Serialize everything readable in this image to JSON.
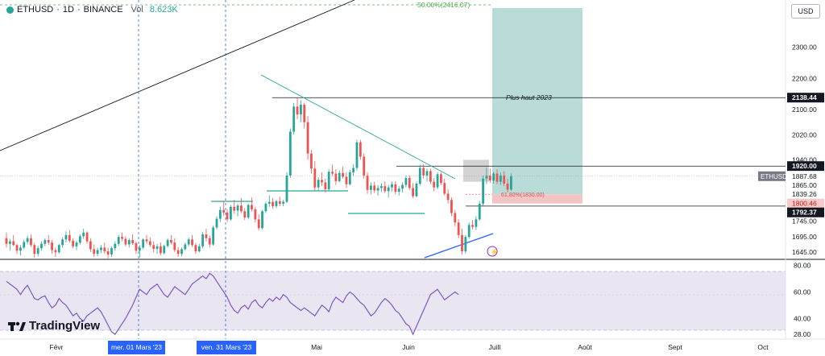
{
  "header": {
    "symbol": "ETHUSD",
    "interval": "1D",
    "exchange": "BINANCE",
    "volume_label": "Vol",
    "volume_value": "8.623K"
  },
  "currency": "USD",
  "brand": "TradingView",
  "chart_data": {
    "type": "candlestick",
    "price_axis": {
      "ticks": [
        "2300.00",
        "2200.00",
        "2100.00",
        "2020.00",
        "1940.00",
        "1865.00",
        "1745.00",
        "1695.00",
        "1645.00"
      ],
      "range": [
        1625,
        2450
      ]
    },
    "time_axis": {
      "labels": [
        "Févr",
        "Mai",
        "Juin",
        "Juill",
        "Août",
        "Sept",
        "Oct"
      ],
      "highlighted": [
        "mer. 01 Mars '23",
        "ven. 31 Mars '23"
      ]
    },
    "price_badges": [
      {
        "label": "2138.44",
        "value": 2138.44,
        "style": "dark"
      },
      {
        "label": "1920.00",
        "value": 1920.0,
        "style": "dark"
      },
      {
        "label": "ETHUSD",
        "value": 1887.68,
        "style": "gray"
      },
      {
        "label": "1887.68",
        "value": 1887.68,
        "style": "light"
      },
      {
        "label": "1865.00",
        "value": 1865.0,
        "style": "light"
      },
      {
        "label": "1839.26",
        "value": 1839.26,
        "style": "light"
      },
      {
        "label": "1800.46",
        "value": 1800.46,
        "style": "red"
      },
      {
        "label": "1792.37",
        "value": 1792.37,
        "style": "dark"
      }
    ],
    "annotations": [
      {
        "text": "50.00%(2416.07)",
        "value": 2416.07
      },
      {
        "text": "Plus haut 2023",
        "value": 2138.44
      },
      {
        "text": "61.80%(1830.00)",
        "value": 1830.0
      }
    ],
    "levels": [
      2138.44,
      1920.0,
      1792.37
    ],
    "ohlc": [
      [
        1690,
        1708,
        1660,
        1672
      ],
      [
        1672,
        1688,
        1650,
        1680
      ],
      [
        1680,
        1700,
        1665,
        1668
      ],
      [
        1668,
        1672,
        1640,
        1650
      ],
      [
        1650,
        1668,
        1635,
        1660
      ],
      [
        1660,
        1685,
        1655,
        1678
      ],
      [
        1678,
        1698,
        1670,
        1690
      ],
      [
        1690,
        1702,
        1662,
        1668
      ],
      [
        1668,
        1675,
        1628,
        1640
      ],
      [
        1640,
        1665,
        1632,
        1658
      ],
      [
        1658,
        1680,
        1650,
        1672
      ],
      [
        1672,
        1690,
        1664,
        1684
      ],
      [
        1684,
        1700,
        1668,
        1676
      ],
      [
        1676,
        1684,
        1640,
        1652
      ],
      [
        1652,
        1660,
        1630,
        1645
      ],
      [
        1645,
        1672,
        1640,
        1668
      ],
      [
        1668,
        1692,
        1660,
        1686
      ],
      [
        1686,
        1712,
        1676,
        1700
      ],
      [
        1700,
        1716,
        1676,
        1682
      ],
      [
        1682,
        1690,
        1658,
        1664
      ],
      [
        1664,
        1682,
        1652,
        1676
      ],
      [
        1676,
        1702,
        1670,
        1696
      ],
      [
        1696,
        1720,
        1688,
        1708
      ],
      [
        1708,
        1712,
        1672,
        1680
      ],
      [
        1680,
        1690,
        1646,
        1655
      ],
      [
        1655,
        1670,
        1630,
        1640
      ],
      [
        1640,
        1660,
        1632,
        1652
      ],
      [
        1652,
        1668,
        1642,
        1660
      ],
      [
        1660,
        1676,
        1640,
        1648
      ],
      [
        1648,
        1660,
        1626,
        1638
      ],
      [
        1638,
        1664,
        1630,
        1658
      ],
      [
        1658,
        1680,
        1650,
        1672
      ],
      [
        1672,
        1700,
        1665,
        1694
      ],
      [
        1694,
        1708,
        1680,
        1688
      ],
      [
        1688,
        1696,
        1664,
        1670
      ],
      [
        1670,
        1690,
        1660,
        1684
      ],
      [
        1684,
        1702,
        1668,
        1674
      ],
      [
        1674,
        1680,
        1640,
        1650
      ],
      [
        1650,
        1668,
        1628,
        1660
      ],
      [
        1660,
        1690,
        1655,
        1686
      ],
      [
        1686,
        1700,
        1672,
        1680
      ],
      [
        1680,
        1692,
        1662,
        1668
      ],
      [
        1668,
        1680,
        1645,
        1656
      ],
      [
        1656,
        1672,
        1640,
        1664
      ],
      [
        1664,
        1676,
        1636,
        1642
      ],
      [
        1642,
        1670,
        1638,
        1665
      ],
      [
        1665,
        1690,
        1660,
        1684
      ],
      [
        1684,
        1700,
        1670,
        1676
      ],
      [
        1676,
        1690,
        1646,
        1652
      ],
      [
        1652,
        1662,
        1630,
        1640
      ],
      [
        1640,
        1660,
        1632,
        1655
      ],
      [
        1655,
        1676,
        1650,
        1670
      ],
      [
        1670,
        1692,
        1664,
        1686
      ],
      [
        1686,
        1700,
        1662,
        1668
      ],
      [
        1668,
        1674,
        1640,
        1648
      ],
      [
        1648,
        1672,
        1644,
        1664
      ],
      [
        1664,
        1710,
        1658,
        1702
      ],
      [
        1702,
        1720,
        1680,
        1690
      ],
      [
        1690,
        1698,
        1660,
        1670
      ],
      [
        1670,
        1730,
        1666,
        1724
      ],
      [
        1724,
        1760,
        1718,
        1752
      ],
      [
        1752,
        1790,
        1742,
        1780
      ],
      [
        1780,
        1808,
        1762,
        1772
      ],
      [
        1772,
        1782,
        1742,
        1750
      ],
      [
        1750,
        1796,
        1745,
        1790
      ],
      [
        1790,
        1812,
        1768,
        1778
      ],
      [
        1778,
        1800,
        1760,
        1794
      ],
      [
        1794,
        1818,
        1770,
        1776
      ],
      [
        1776,
        1786,
        1748,
        1756
      ],
      [
        1756,
        1800,
        1750,
        1796
      ],
      [
        1796,
        1820,
        1775,
        1782
      ],
      [
        1782,
        1790,
        1740,
        1750
      ],
      [
        1750,
        1766,
        1715,
        1722
      ],
      [
        1722,
        1780,
        1718,
        1776
      ],
      [
        1776,
        1806,
        1770,
        1800
      ],
      [
        1800,
        1826,
        1790,
        1806
      ],
      [
        1806,
        1818,
        1784,
        1792
      ],
      [
        1792,
        1812,
        1786,
        1808
      ],
      [
        1808,
        1822,
        1792,
        1800
      ],
      [
        1800,
        1812,
        1792,
        1806
      ],
      [
        1806,
        1900,
        1802,
        1890
      ],
      [
        1890,
        2040,
        1882,
        2030
      ],
      [
        2030,
        2122,
        2020,
        2110
      ],
      [
        2110,
        2138,
        2070,
        2085
      ],
      [
        2085,
        2130,
        2060,
        2116
      ],
      [
        2116,
        2122,
        2040,
        2060
      ],
      [
        2060,
        2080,
        1940,
        1960
      ],
      [
        1960,
        1972,
        1896,
        1912
      ],
      [
        1912,
        1936,
        1840,
        1852
      ],
      [
        1852,
        1884,
        1840,
        1876
      ],
      [
        1876,
        1900,
        1856,
        1868
      ],
      [
        1868,
        1880,
        1836,
        1846
      ],
      [
        1846,
        1910,
        1840,
        1902
      ],
      [
        1902,
        1924,
        1888,
        1896
      ],
      [
        1896,
        1910,
        1860,
        1872
      ],
      [
        1872,
        1906,
        1868,
        1898
      ],
      [
        1898,
        1918,
        1880,
        1886
      ],
      [
        1886,
        1900,
        1850,
        1862
      ],
      [
        1862,
        1908,
        1858,
        1900
      ],
      [
        1900,
        1926,
        1888,
        1914
      ],
      [
        1914,
        2004,
        1906,
        1996
      ],
      [
        1996,
        2004,
        1940,
        1950
      ],
      [
        1950,
        1960,
        1880,
        1890
      ],
      [
        1890,
        1900,
        1832,
        1844
      ],
      [
        1844,
        1868,
        1830,
        1858
      ],
      [
        1858,
        1870,
        1834,
        1842
      ],
      [
        1842,
        1860,
        1826,
        1850
      ],
      [
        1850,
        1866,
        1838,
        1856
      ],
      [
        1856,
        1872,
        1834,
        1840
      ],
      [
        1840,
        1860,
        1820,
        1852
      ],
      [
        1852,
        1870,
        1840,
        1862
      ],
      [
        1862,
        1872,
        1830,
        1838
      ],
      [
        1838,
        1856,
        1826,
        1848
      ],
      [
        1848,
        1868,
        1836,
        1860
      ],
      [
        1860,
        1890,
        1852,
        1882
      ],
      [
        1882,
        1890,
        1844,
        1850
      ],
      [
        1850,
        1866,
        1818,
        1824
      ],
      [
        1824,
        1870,
        1820,
        1864
      ],
      [
        1864,
        1924,
        1858,
        1914
      ],
      [
        1914,
        1926,
        1880,
        1890
      ],
      [
        1890,
        1912,
        1870,
        1904
      ],
      [
        1904,
        1912,
        1862,
        1870
      ],
      [
        1870,
        1882,
        1840,
        1852
      ],
      [
        1852,
        1900,
        1846,
        1894
      ],
      [
        1894,
        1900,
        1860,
        1866
      ],
      [
        1866,
        1880,
        1826,
        1832
      ],
      [
        1832,
        1846,
        1800,
        1812
      ],
      [
        1812,
        1820,
        1760,
        1770
      ],
      [
        1770,
        1780,
        1728,
        1740
      ],
      [
        1740,
        1750,
        1690,
        1700
      ],
      [
        1700,
        1720,
        1638,
        1648
      ],
      [
        1648,
        1700,
        1640,
        1694
      ],
      [
        1694,
        1740,
        1688,
        1732
      ],
      [
        1732,
        1748,
        1718,
        1726
      ],
      [
        1726,
        1760,
        1716,
        1750
      ],
      [
        1750,
        1808,
        1746,
        1800
      ],
      [
        1800,
        1890,
        1794,
        1880
      ],
      [
        1880,
        1915,
        1862,
        1890
      ],
      [
        1890,
        1912,
        1866,
        1874
      ],
      [
        1874,
        1902,
        1864,
        1896
      ],
      [
        1896,
        1910,
        1862,
        1870
      ],
      [
        1870,
        1900,
        1860,
        1890
      ],
      [
        1890,
        1904,
        1856,
        1864
      ],
      [
        1864,
        1880,
        1836,
        1845
      ],
      [
        1845,
        1896,
        1840,
        1888
      ]
    ],
    "rsi": {
      "ticks": [
        "80.00",
        "60.00",
        "40.00",
        "28.00"
      ],
      "range": [
        25,
        84
      ],
      "values": [
        68,
        66,
        64,
        62,
        58,
        62,
        65,
        60,
        55,
        54,
        56,
        57,
        52,
        48,
        50,
        55,
        52,
        50,
        46,
        42,
        44,
        40,
        38,
        42,
        44,
        46,
        48,
        45,
        40,
        35,
        30,
        28,
        32,
        36,
        40,
        45,
        50,
        56,
        62,
        60,
        58,
        62,
        64,
        66,
        62,
        58,
        56,
        60,
        64,
        62,
        60,
        58,
        62,
        66,
        68,
        70,
        72,
        70,
        74,
        72,
        68,
        64,
        60,
        56,
        50,
        46,
        44,
        48,
        50,
        47,
        52,
        54,
        50,
        48,
        52,
        55,
        53,
        56,
        54,
        58,
        56,
        52,
        50,
        48,
        46,
        48,
        46,
        44,
        42,
        46,
        50,
        48,
        45,
        52,
        56,
        54,
        52,
        57,
        60,
        58,
        55,
        52,
        50,
        46,
        42,
        44,
        48,
        52,
        55,
        53,
        50,
        46,
        44,
        40,
        36,
        34,
        28,
        34,
        40,
        46,
        52,
        58,
        60,
        62,
        58,
        54,
        56,
        58,
        60,
        58
      ]
    }
  }
}
